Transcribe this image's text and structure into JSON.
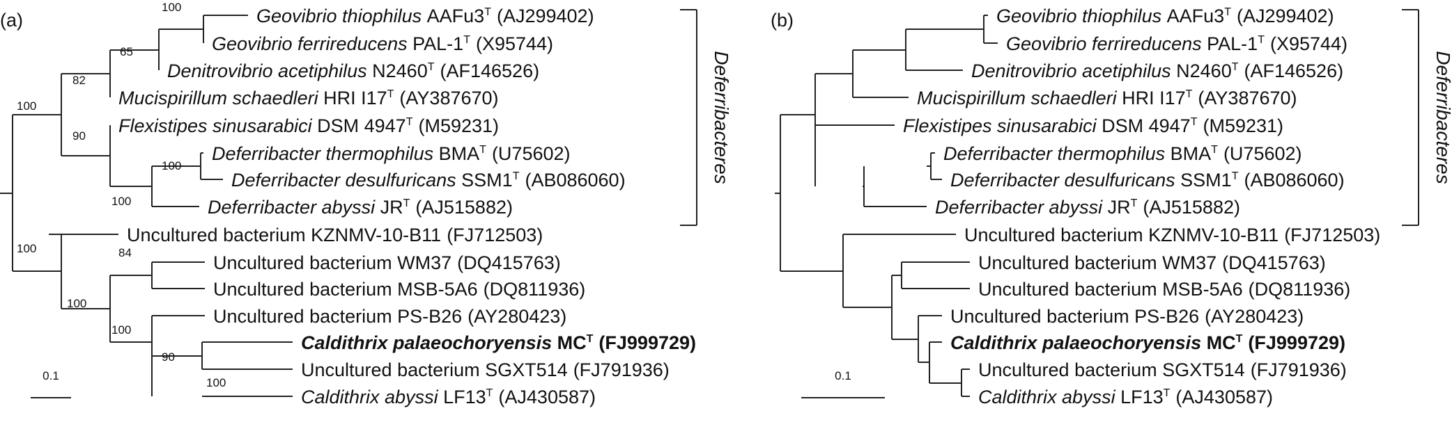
{
  "panels": [
    {
      "label": "(a)",
      "scale_label": "0.1",
      "clade_label": "Deferribacteres",
      "bootstrap": [
        "100",
        "65",
        "82",
        "100",
        "90",
        "100",
        "100",
        "100",
        "84",
        "100",
        "100",
        "90",
        "100"
      ]
    },
    {
      "label": "(b)",
      "scale_label": "0.1",
      "clade_label": "Deferribacteres",
      "bootstrap": []
    }
  ],
  "taxa": [
    {
      "genus": "Geovibrio thiophilus",
      "strain": "AAFu3",
      "type": "T",
      "acc": "(AJ299402)",
      "bold": false
    },
    {
      "genus": "Geovibrio ferrireducens",
      "strain": "PAL-1",
      "type": "T",
      "acc": "(X95744)",
      "bold": false
    },
    {
      "genus": "Denitrovibrio acetiphilus",
      "strain": "N2460",
      "type": "T",
      "acc": "(AF146526)",
      "bold": false
    },
    {
      "genus": "Mucispirillum schaedleri",
      "strain": "HRI I17",
      "type": "T",
      "acc": "(AY387670)",
      "bold": false
    },
    {
      "genus": "Flexistipes sinusarabici",
      "strain": "DSM 4947",
      "type": "T",
      "acc": "(M59231)",
      "bold": false
    },
    {
      "genus": "Deferribacter thermophilus",
      "strain": "BMA",
      "type": "T",
      "acc": "(U75602)",
      "bold": false
    },
    {
      "genus": "Deferribacter desulfuricans",
      "strain": "SSM1",
      "type": "T",
      "acc": "(AB086060)",
      "bold": false
    },
    {
      "genus": "Deferribacter abyssi",
      "strain": "JR",
      "type": "T",
      "acc": "(AJ515882)",
      "bold": false
    },
    {
      "genus": "",
      "strain": "Uncultured bacterium KZNMV-10-B11",
      "type": "",
      "acc": "(FJ712503)",
      "bold": false
    },
    {
      "genus": "",
      "strain": "Uncultured bacterium WM37",
      "type": "",
      "acc": "(DQ415763)",
      "bold": false
    },
    {
      "genus": "",
      "strain": "Uncultured bacterium MSB-5A6",
      "type": "",
      "acc": "(DQ811936)",
      "bold": false
    },
    {
      "genus": "",
      "strain": "Uncultured bacterium PS-B26",
      "type": "",
      "acc": "(AY280423)",
      "bold": false
    },
    {
      "genus": "Caldithrix palaeochoryensis",
      "strain": "MC",
      "type": "T",
      "acc": "(FJ999729)",
      "bold": true
    },
    {
      "genus": "",
      "strain": "Uncultured bacterium SGXT514",
      "type": "",
      "acc": "(FJ791936)",
      "bold": false
    },
    {
      "genus": "Caldithrix abyssi",
      "strain": "LF13",
      "type": "T",
      "acc": "(AJ430587)",
      "bold": false
    }
  ]
}
